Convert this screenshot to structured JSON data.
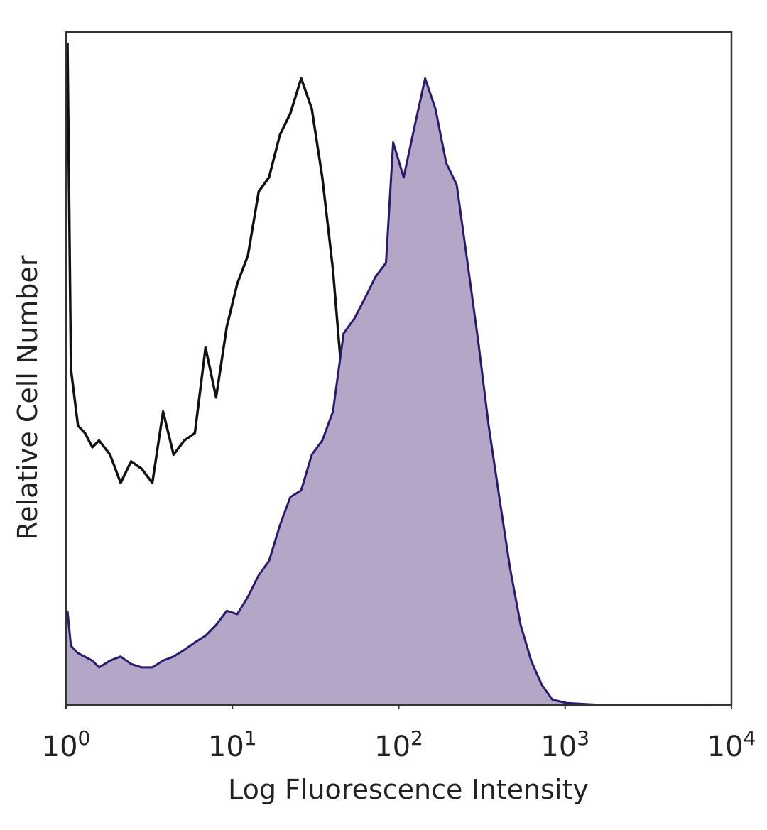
{
  "chart_data": {
    "type": "histogram-overlay",
    "x_label": "Log Fluorescence Intensity",
    "y_label": "Relative Cell Number",
    "xscale": "log",
    "xlim": [
      1,
      10000
    ],
    "ylim": [
      0,
      100
    ],
    "xticks": [
      {
        "value": 1,
        "label": "10",
        "exponent": "0"
      },
      {
        "value": 10,
        "label": "10",
        "exponent": "1"
      },
      {
        "value": 100,
        "label": "10",
        "exponent": "2"
      },
      {
        "value": 1000,
        "label": "10",
        "exponent": "3"
      },
      {
        "value": 10000,
        "label": "10",
        "exponent": "4"
      }
    ],
    "series": [
      {
        "color": "#111111",
        "filled": false,
        "x": [
          1.02,
          1.07,
          1.18,
          1.3,
          1.44,
          1.58,
          1.84,
          2.13,
          2.46,
          2.85,
          3.3,
          3.83,
          4.43,
          5.14,
          5.95,
          6.89,
          7.98,
          9.25,
          10.7,
          12.4,
          14.4,
          16.6,
          19.3,
          22.3,
          25.9,
          30.0,
          34.7,
          40.2,
          46.6,
          54.0,
          62.5,
          72.4,
          83.8,
          97.1,
          112,
          130,
          175,
          315,
          1021,
          7240
        ],
        "values": [
          98.4,
          49.9,
          41.5,
          40.4,
          38.3,
          39.3,
          37.2,
          33.0,
          36.2,
          35.1,
          33.0,
          43.6,
          37.2,
          39.3,
          40.4,
          53.1,
          45.7,
          56.2,
          62.6,
          66.8,
          76.3,
          78.4,
          84.7,
          87.9,
          93.1,
          88.6,
          78.4,
          64.7,
          45.7,
          30.9,
          19.3,
          11.9,
          6.6,
          3.5,
          1.9,
          1.2,
          0.5,
          0.2,
          0,
          0
        ]
      },
      {
        "color": "#2a1a6e",
        "fill": "#b3a6c6",
        "filled": true,
        "x": [
          1.02,
          1.07,
          1.18,
          1.44,
          1.58,
          1.84,
          2.13,
          2.46,
          2.85,
          3.3,
          3.83,
          4.43,
          5.14,
          5.95,
          6.89,
          7.98,
          9.25,
          10.7,
          12.4,
          14.4,
          16.6,
          19.3,
          22.3,
          25.9,
          30.0,
          34.7,
          40.2,
          46.6,
          54.0,
          62.5,
          72.4,
          83.8,
          92.5,
          107,
          124,
          144,
          166,
          193,
          223,
          259,
          300,
          347,
          402,
          466,
          540,
          625,
          724,
          838,
          1021,
          1663,
          7240
        ],
        "values": [
          14.0,
          8.8,
          7.7,
          6.6,
          5.6,
          6.6,
          7.2,
          6.1,
          5.6,
          5.6,
          6.6,
          7.2,
          8.2,
          9.3,
          10.3,
          11.9,
          14.0,
          13.5,
          16.1,
          19.3,
          21.4,
          26.7,
          30.9,
          31.9,
          37.2,
          39.3,
          43.6,
          55.2,
          57.4,
          60.4,
          63.6,
          65.7,
          83.6,
          78.4,
          85.8,
          93.1,
          88.6,
          80.5,
          77.3,
          65.7,
          54.1,
          41.5,
          30.9,
          20.4,
          11.9,
          6.6,
          3.0,
          0.8,
          0.3,
          0,
          0
        ]
      }
    ]
  }
}
